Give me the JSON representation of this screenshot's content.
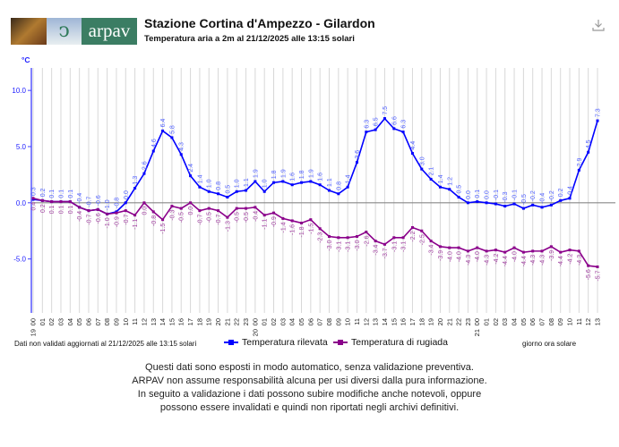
{
  "header": {
    "logo_text": "arpav",
    "title": "Stazione Cortina d'Ampezzo - Gilardon",
    "subtitle": "Temperatura aria a 2m al 21/12/2025 alle 13:15 solari",
    "download_icon": "download-icon"
  },
  "chart_data": {
    "type": "line",
    "ylabel": "°C",
    "xlabel": "giorno ora solare",
    "ylim": [
      -9.8,
      12
    ],
    "yticks": [
      10.0,
      5.0,
      0.0,
      -5.0
    ],
    "ytick_labels": [
      "10.0",
      "5.0",
      "0.0",
      "-5.0"
    ],
    "x": [
      "00",
      "01",
      "02",
      "03",
      "04",
      "05",
      "06",
      "07",
      "08",
      "09",
      "10",
      "11",
      "12",
      "13",
      "14",
      "15",
      "16",
      "17",
      "18",
      "19",
      "20",
      "21",
      "22",
      "23",
      "00",
      "01",
      "02",
      "03",
      "04",
      "05",
      "06",
      "07",
      "08",
      "09",
      "10",
      "11",
      "12",
      "13",
      "14",
      "15",
      "16",
      "17",
      "18",
      "19",
      "20",
      "21",
      "22",
      "23",
      "00",
      "01",
      "02",
      "03",
      "04",
      "05",
      "06",
      "07",
      "08",
      "09",
      "10",
      "11",
      "12",
      "13"
    ],
    "day_labels": [
      {
        "index": 0,
        "label": "19"
      },
      {
        "index": 24,
        "label": "20"
      },
      {
        "index": 48,
        "label": "21"
      }
    ],
    "grid": true,
    "series": [
      {
        "name": "Temperatura rilevata",
        "color": "#0000ff",
        "values": [
          0.3,
          0.2,
          0.1,
          0.1,
          0.1,
          -0.4,
          -0.7,
          -0.6,
          -1.0,
          -0.8,
          0.0,
          1.3,
          2.6,
          4.6,
          6.4,
          5.8,
          4.3,
          2.4,
          1.4,
          1.0,
          0.8,
          0.5,
          1.0,
          1.1,
          1.9,
          1.0,
          1.8,
          1.9,
          1.6,
          1.8,
          1.9,
          1.6,
          1.1,
          0.8,
          1.4,
          3.6,
          6.3,
          6.5,
          7.5,
          6.6,
          6.3,
          4.4,
          3.0,
          2.1,
          1.4,
          1.2,
          0.5,
          0.0,
          0.1,
          0.0,
          -0.1,
          -0.3,
          -0.1,
          -0.5,
          -0.2,
          -0.4,
          -0.2,
          0.2,
          0.4,
          2.9,
          4.5,
          7.3
        ]
      },
      {
        "name": "Temperatura di rugiada",
        "color": "#8b008b",
        "values": [
          0.4,
          0.2,
          0.1,
          0.1,
          0.1,
          -0.4,
          -0.7,
          -0.6,
          -1.0,
          -0.9,
          -0.7,
          -1.1,
          0.0,
          -0.8,
          -1.5,
          -0.3,
          -0.5,
          0.0,
          -0.7,
          -0.5,
          -0.7,
          -1.3,
          -0.5,
          -0.5,
          -0.4,
          -1.1,
          -0.9,
          -1.4,
          -1.6,
          -1.8,
          -1.5,
          -2.3,
          -3.0,
          -3.1,
          -3.1,
          -3.0,
          -2.6,
          -3.4,
          -3.7,
          -3.1,
          -3.1,
          -2.2,
          -2.5,
          -3.4,
          -3.9,
          -4.0,
          -4.0,
          -4.3,
          -4.0,
          -4.3,
          -4.2,
          -4.4,
          -4.0,
          -4.4,
          -4.3,
          -4.3,
          -3.9,
          -4.4,
          -4.2,
          -4.3,
          -5.6,
          -5.7
        ]
      }
    ],
    "legend_position": "bottom"
  },
  "footer": {
    "note": "Dati non validati aggiornati al 21/12/2025 alle 13:15 solari",
    "axis_caption": "giorno ora solare",
    "disclaimer": [
      "Questi dati sono esposti in modo automatico, senza validazione preventiva.",
      "ARPAV non assume responsabilità alcuna per usi diversi dalla pura informazione.",
      "In seguito a validazione i dati possono subire modifiche anche notevoli, oppure",
      "possono essere invalidati e quindi non riportati negli archivi definitivi."
    ]
  }
}
